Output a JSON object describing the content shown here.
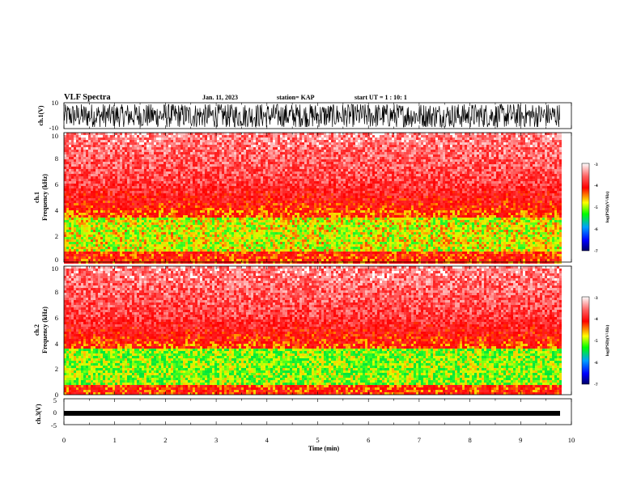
{
  "header": {
    "title": "VLF Spectra",
    "date": "Jan. 11, 2023",
    "station": "station= KAP",
    "start_ut": "start  UT =  1 : 10: 1"
  },
  "chart_data": [
    {
      "type": "line",
      "title": "",
      "ylabel": "ch.1(V)",
      "ylim": [
        -10,
        10
      ],
      "y_ticks": [
        "10",
        "-10"
      ],
      "xlim": [
        0,
        10
      ],
      "x_extent_min": 9.83,
      "description_values": {
        "min": -10,
        "max": 10
      }
    },
    {
      "type": "heatmap",
      "ylabel": "ch.1\nFrequency (kHz)",
      "ylabel_line1": "ch.1",
      "ylabel_line2": "Frequency  (kHz)",
      "ylim": [
        0,
        10
      ],
      "y_ticks": [
        "0",
        "2",
        "4",
        "6",
        "8",
        "10"
      ],
      "xlim": [
        0,
        10
      ],
      "colorbar": {
        "label": "log(PSD)(V²/Hz)",
        "range": [
          -7,
          -3
        ],
        "ticks": [
          "-3",
          "-4",
          "-5",
          "-6",
          "-7"
        ]
      }
    },
    {
      "type": "heatmap",
      "ylabel": "ch.2\nFrequency (kHz)",
      "ylabel_line1": "ch.2",
      "ylabel_line2": "Frequency  (kHz)",
      "ylim": [
        0,
        10
      ],
      "y_ticks": [
        "0",
        "2",
        "4",
        "6",
        "8",
        "10"
      ],
      "xlim": [
        0,
        10
      ],
      "colorbar": {
        "label": "log(PSD)(V²/Hz)",
        "range": [
          -7,
          -3
        ],
        "ticks": [
          "-3",
          "-4",
          "-5",
          "-6",
          "-7"
        ]
      }
    },
    {
      "type": "line",
      "ylabel": "ch.3(V)",
      "ylim": [
        -5,
        5
      ],
      "y_ticks": [
        "5",
        "0",
        "-5"
      ],
      "xlim": [
        0,
        10
      ],
      "x_ticks": [
        "0",
        "1",
        "2",
        "3",
        "4",
        "5",
        "6",
        "7",
        "8",
        "9",
        "10"
      ],
      "xlabel": "Time  (min)",
      "band_values": [
        -1.6,
        -1.0
      ]
    }
  ]
}
